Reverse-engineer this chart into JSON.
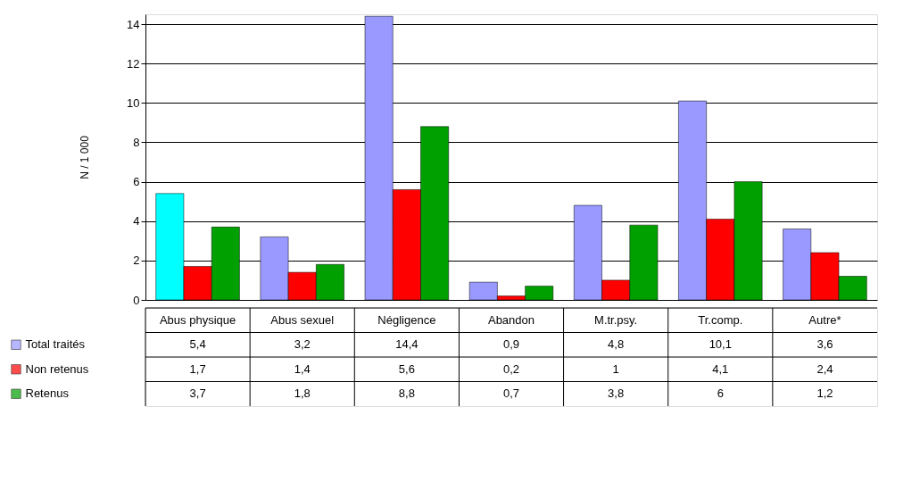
{
  "chart_data": {
    "type": "bar",
    "ylabel": "N / 1 000",
    "categories": [
      "Abus physique",
      "Abus sexuel",
      "Négligence",
      "Abandon",
      "M.tr.psy.",
      "Tr.comp.",
      "Autre*"
    ],
    "series": [
      {
        "name": "Total traités",
        "color": "#9999ff",
        "colors": [
          "#00ffff",
          "#9999ff",
          "#9999ff",
          "#9999ff",
          "#9999ff",
          "#9999ff",
          "#9999ff"
        ],
        "values": [
          5.4,
          3.2,
          14.4,
          0.9,
          4.8,
          10.1,
          3.6
        ],
        "value_labels": [
          "5,4",
          "3,2",
          "14,4",
          "0,9",
          "4,8",
          "10,1",
          "3,6"
        ]
      },
      {
        "name": "Non retenus",
        "color": "#ff0000",
        "values": [
          1.7,
          1.4,
          5.6,
          0.2,
          1,
          4.1,
          2.4
        ],
        "value_labels": [
          "1,7",
          "1,4",
          "5,6",
          "0,2",
          "1",
          "4,1",
          "2,4"
        ]
      },
      {
        "name": "Retenus",
        "color": "#00a000",
        "values": [
          3.7,
          1.8,
          8.8,
          0.7,
          3.8,
          6,
          1.2
        ],
        "value_labels": [
          "3,7",
          "1,8",
          "8,8",
          "0,7",
          "3,8",
          "6",
          "1,2"
        ]
      }
    ],
    "ylim": [
      0,
      14.5
    ],
    "yticks": [
      0,
      2,
      4,
      6,
      8,
      10,
      12,
      14
    ],
    "grid": "y",
    "legend": "bottom left"
  }
}
